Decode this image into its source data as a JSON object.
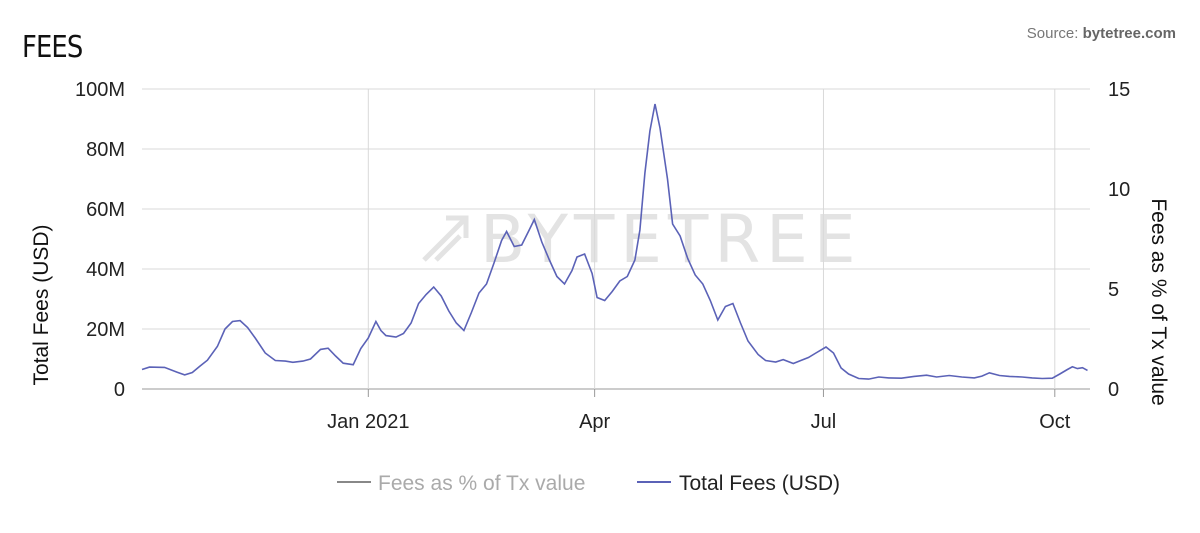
{
  "header": {
    "title": "FEES",
    "source_prefix": "Source: ",
    "source_name": "bytetree.com"
  },
  "watermark": "BYTETREE",
  "chart_data": {
    "type": "line",
    "title": "FEES",
    "y_left_label": "Total Fees (USD)",
    "y_right_label": "Fees as % of Tx value",
    "y_left_ticks": [
      "0",
      "20M",
      "40M",
      "60M",
      "80M",
      "100M"
    ],
    "y_left_range": [
      0,
      100000000
    ],
    "y_right_ticks": [
      "0",
      "5",
      "10",
      "15"
    ],
    "y_right_range": [
      0,
      15
    ],
    "x_range": [
      "2020-10-03",
      "2021-10-15"
    ],
    "x_ticks": [
      {
        "label": "Jan 2021",
        "date": "2021-01-01"
      },
      {
        "label": "Apr",
        "date": "2021-04-01"
      },
      {
        "label": "Jul",
        "date": "2021-07-01"
      },
      {
        "label": "Oct",
        "date": "2021-10-01"
      }
    ],
    "grid": true,
    "legend_position": "bottom",
    "colors": {
      "total_fees": "#5b62b7",
      "fees_pct": "#888888"
    },
    "series": [
      {
        "name": "Fees as % of Tx value",
        "axis": "right",
        "values": []
      },
      {
        "name": "Total Fees (USD)",
        "axis": "left",
        "points": [
          [
            "2020-10-03",
            6.5
          ],
          [
            "2020-10-06",
            7.3
          ],
          [
            "2020-10-12",
            7.2
          ],
          [
            "2020-10-17",
            5.6
          ],
          [
            "2020-10-20",
            4.7
          ],
          [
            "2020-10-23",
            5.5
          ],
          [
            "2020-10-26",
            7.6
          ],
          [
            "2020-10-29",
            9.6
          ],
          [
            "2020-11-02",
            14.2
          ],
          [
            "2020-11-05",
            20.0
          ],
          [
            "2020-11-08",
            22.5
          ],
          [
            "2020-11-11",
            22.8
          ],
          [
            "2020-11-14",
            20.5
          ],
          [
            "2020-11-17",
            17.0
          ],
          [
            "2020-11-21",
            12.0
          ],
          [
            "2020-11-25",
            9.5
          ],
          [
            "2020-11-29",
            9.3
          ],
          [
            "2020-12-02",
            8.9
          ],
          [
            "2020-12-06",
            9.3
          ],
          [
            "2020-12-09",
            10.0
          ],
          [
            "2020-12-13",
            13.2
          ],
          [
            "2020-12-16",
            13.6
          ],
          [
            "2020-12-19",
            11.0
          ],
          [
            "2020-12-22",
            8.6
          ],
          [
            "2020-12-26",
            8.1
          ],
          [
            "2020-12-29",
            13.5
          ],
          [
            "2021-01-01",
            17.0
          ],
          [
            "2021-01-04",
            22.5
          ],
          [
            "2021-01-06",
            19.5
          ],
          [
            "2021-01-08",
            17.8
          ],
          [
            "2021-01-12",
            17.3
          ],
          [
            "2021-01-15",
            18.5
          ],
          [
            "2021-01-18",
            22.0
          ],
          [
            "2021-01-21",
            28.5
          ],
          [
            "2021-01-24",
            31.5
          ],
          [
            "2021-01-27",
            34.0
          ],
          [
            "2021-01-30",
            31.0
          ],
          [
            "2021-02-02",
            26.0
          ],
          [
            "2021-02-05",
            22.0
          ],
          [
            "2021-02-08",
            19.5
          ],
          [
            "2021-02-11",
            25.5
          ],
          [
            "2021-02-14",
            32.0
          ],
          [
            "2021-02-17",
            35.0
          ],
          [
            "2021-02-20",
            42.0
          ],
          [
            "2021-02-23",
            49.5
          ],
          [
            "2021-02-25",
            52.5
          ],
          [
            "2021-02-28",
            47.5
          ],
          [
            "2021-03-03",
            48.0
          ],
          [
            "2021-03-06",
            53.0
          ],
          [
            "2021-03-08",
            56.5
          ],
          [
            "2021-03-11",
            49.0
          ],
          [
            "2021-03-14",
            43.0
          ],
          [
            "2021-03-17",
            37.5
          ],
          [
            "2021-03-20",
            35.0
          ],
          [
            "2021-03-23",
            39.5
          ],
          [
            "2021-03-25",
            44.0
          ],
          [
            "2021-03-28",
            45.0
          ],
          [
            "2021-03-31",
            38.5
          ],
          [
            "2021-04-02",
            30.5
          ],
          [
            "2021-04-05",
            29.5
          ],
          [
            "2021-04-08",
            32.5
          ],
          [
            "2021-04-11",
            36.0
          ],
          [
            "2021-04-14",
            37.5
          ],
          [
            "2021-04-17",
            43.0
          ],
          [
            "2021-04-19",
            53.0
          ],
          [
            "2021-04-21",
            72.0
          ],
          [
            "2021-04-23",
            86.0
          ],
          [
            "2021-04-25",
            95.0
          ],
          [
            "2021-04-27",
            87.0
          ],
          [
            "2021-04-30",
            70.0
          ],
          [
            "2021-05-02",
            55.0
          ],
          [
            "2021-05-05",
            51.0
          ],
          [
            "2021-05-08",
            43.5
          ],
          [
            "2021-05-11",
            38.0
          ],
          [
            "2021-05-14",
            35.0
          ],
          [
            "2021-05-17",
            29.5
          ],
          [
            "2021-05-20",
            23.0
          ],
          [
            "2021-05-23",
            27.5
          ],
          [
            "2021-05-26",
            28.5
          ],
          [
            "2021-05-29",
            22.0
          ],
          [
            "2021-06-01",
            16.0
          ],
          [
            "2021-06-05",
            11.5
          ],
          [
            "2021-06-08",
            9.5
          ],
          [
            "2021-06-12",
            9.0
          ],
          [
            "2021-06-15",
            9.8
          ],
          [
            "2021-06-19",
            8.5
          ],
          [
            "2021-06-22",
            9.5
          ],
          [
            "2021-06-25",
            10.5
          ],
          [
            "2021-06-28",
            12.0
          ],
          [
            "2021-07-02",
            14.0
          ],
          [
            "2021-07-05",
            12.0
          ],
          [
            "2021-07-08",
            7.0
          ],
          [
            "2021-07-11",
            5.0
          ],
          [
            "2021-07-15",
            3.5
          ],
          [
            "2021-07-19",
            3.3
          ],
          [
            "2021-07-23",
            4.0
          ],
          [
            "2021-07-27",
            3.7
          ],
          [
            "2021-08-01",
            3.6
          ],
          [
            "2021-08-06",
            4.2
          ],
          [
            "2021-08-11",
            4.6
          ],
          [
            "2021-08-15",
            4.0
          ],
          [
            "2021-08-20",
            4.5
          ],
          [
            "2021-08-25",
            4.0
          ],
          [
            "2021-08-30",
            3.7
          ],
          [
            "2021-09-02",
            4.3
          ],
          [
            "2021-09-05",
            5.4
          ],
          [
            "2021-09-09",
            4.5
          ],
          [
            "2021-09-13",
            4.2
          ],
          [
            "2021-09-18",
            4.0
          ],
          [
            "2021-09-22",
            3.7
          ],
          [
            "2021-09-26",
            3.5
          ],
          [
            "2021-09-30",
            3.6
          ],
          [
            "2021-10-03",
            5.0
          ],
          [
            "2021-10-06",
            6.5
          ],
          [
            "2021-10-08",
            7.4
          ],
          [
            "2021-10-10",
            6.8
          ],
          [
            "2021-10-12",
            7.1
          ],
          [
            "2021-10-14",
            6.2
          ]
        ],
        "unit": "M"
      }
    ]
  },
  "legend": {
    "item1": "Fees as % of Tx value",
    "item2": "Total Fees (USD)"
  }
}
